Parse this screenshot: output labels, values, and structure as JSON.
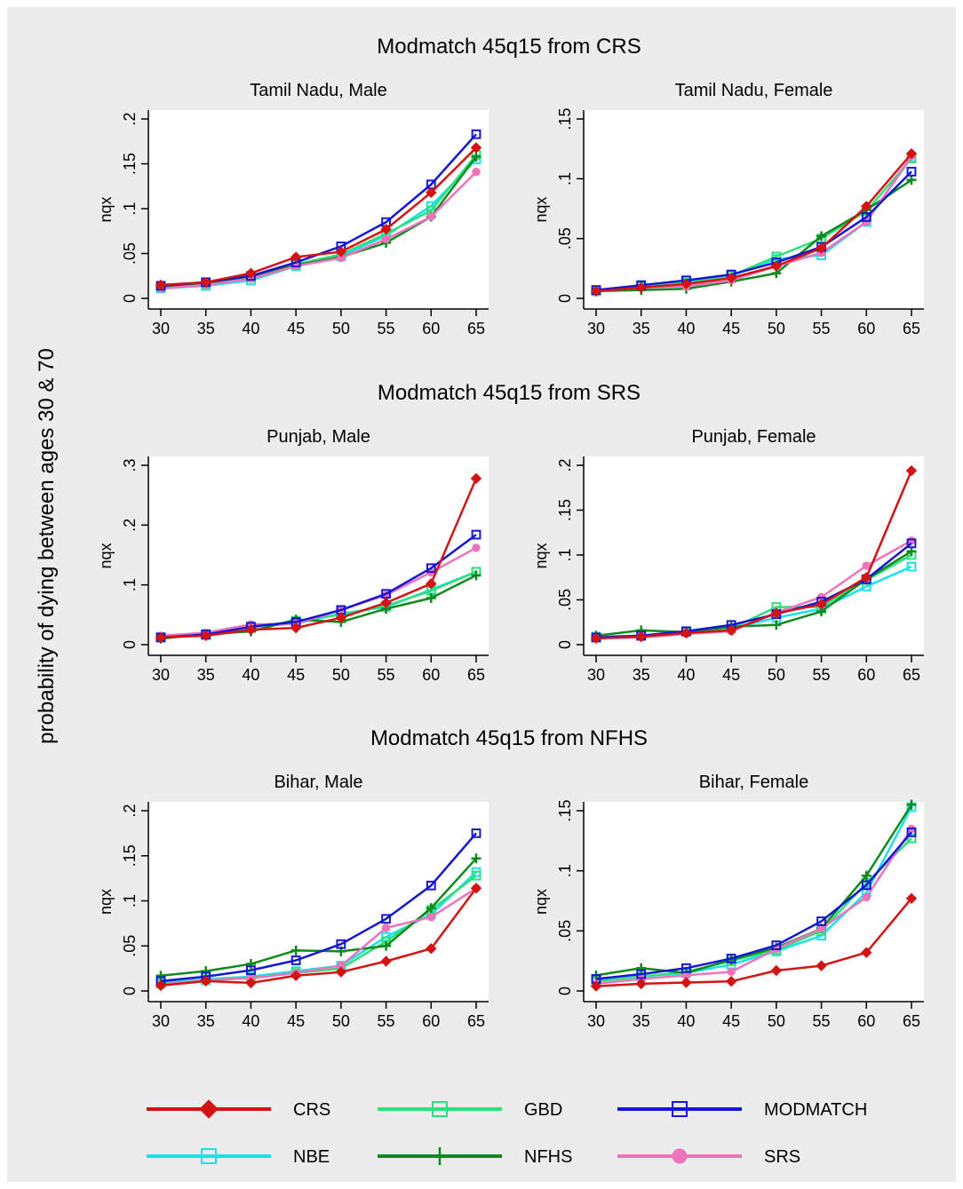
{
  "page": {
    "y_axis_label": "probability of dying between ages 30 & 70",
    "background_color": "#ffffff",
    "panel_background_color": "#ececec"
  },
  "sections": [
    {
      "title": "Modmatch 45q15 from CRS"
    },
    {
      "title": "Modmatch 45q15 from SRS"
    },
    {
      "title": "Modmatch 45q15 from NFHS"
    }
  ],
  "legend": {
    "items": [
      {
        "label": "CRS",
        "color": "#d41313",
        "marker": "diamond"
      },
      {
        "label": "GBD",
        "color": "#2ee07a",
        "marker": "square-open"
      },
      {
        "label": "MODMATCH",
        "color": "#1515d4",
        "marker": "square-open"
      },
      {
        "label": "NBE",
        "color": "#18e0ee",
        "marker": "square-open"
      },
      {
        "label": "NFHS",
        "color": "#0f8a1c",
        "marker": "plus"
      },
      {
        "label": "SRS",
        "color": "#ef72bc",
        "marker": "circle"
      }
    ]
  },
  "chart_data": [
    {
      "type": "line",
      "title": "Tamil Nadu, Male",
      "ylabel": "nqx",
      "x": [
        30,
        35,
        40,
        45,
        50,
        55,
        60,
        65
      ],
      "ylim": [
        0,
        0.2
      ],
      "yticks": [
        0,
        0.05,
        0.1,
        0.15,
        0.2
      ],
      "ytick_labels": [
        "0",
        ".05",
        ".1",
        ".15",
        ".2"
      ],
      "series": [
        {
          "name": "CRS",
          "values": [
            0.015,
            0.018,
            0.028,
            0.046,
            0.052,
            0.077,
            0.118,
            0.168
          ]
        },
        {
          "name": "GBD",
          "values": [
            0.012,
            0.016,
            0.023,
            0.038,
            0.049,
            0.072,
            0.098,
            0.16
          ]
        },
        {
          "name": "MODMATCH",
          "values": [
            0.014,
            0.018,
            0.025,
            0.04,
            0.058,
            0.085,
            0.127,
            0.183
          ]
        },
        {
          "name": "NBE",
          "values": [
            0.011,
            0.014,
            0.02,
            0.036,
            0.047,
            0.07,
            0.103,
            0.155
          ]
        },
        {
          "name": "NFHS",
          "values": [
            0.013,
            0.017,
            0.024,
            0.037,
            0.046,
            0.062,
            0.091,
            0.158
          ]
        },
        {
          "name": "SRS",
          "values": [
            0.011,
            0.015,
            0.022,
            0.036,
            0.045,
            0.066,
            0.091,
            0.141
          ]
        }
      ]
    },
    {
      "type": "line",
      "title": "Tamil Nadu, Female",
      "ylabel": "nqx",
      "x": [
        30,
        35,
        40,
        45,
        50,
        55,
        60,
        65
      ],
      "ylim": [
        0,
        0.15
      ],
      "yticks": [
        0,
        0.05,
        0.1,
        0.15
      ],
      "ytick_labels": [
        "0",
        ".05",
        ".1",
        ".15"
      ],
      "series": [
        {
          "name": "CRS",
          "values": [
            0.006,
            0.009,
            0.012,
            0.017,
            0.027,
            0.042,
            0.077,
            0.121
          ]
        },
        {
          "name": "GBD",
          "values": [
            0.006,
            0.01,
            0.013,
            0.019,
            0.035,
            0.05,
            0.073,
            0.117
          ]
        },
        {
          "name": "MODMATCH",
          "values": [
            0.007,
            0.011,
            0.015,
            0.02,
            0.03,
            0.043,
            0.068,
            0.106
          ]
        },
        {
          "name": "NBE",
          "values": [
            0.006,
            0.011,
            0.015,
            0.019,
            0.033,
            0.036,
            0.064,
            0.118
          ]
        },
        {
          "name": "NFHS",
          "values": [
            0.006,
            0.007,
            0.008,
            0.014,
            0.021,
            0.052,
            0.074,
            0.099
          ]
        },
        {
          "name": "SRS",
          "values": [
            0.006,
            0.009,
            0.01,
            0.015,
            0.027,
            0.038,
            0.064,
            0.119
          ]
        }
      ]
    },
    {
      "type": "line",
      "title": "Punjab, Male",
      "ylabel": "nqx",
      "x": [
        30,
        35,
        40,
        45,
        50,
        55,
        60,
        65
      ],
      "ylim": [
        0,
        0.3
      ],
      "yticks": [
        0,
        0.1,
        0.2,
        0.3
      ],
      "ytick_labels": [
        "0",
        ".1",
        ".2",
        ".3"
      ],
      "series": [
        {
          "name": "CRS",
          "values": [
            0.012,
            0.015,
            0.025,
            0.028,
            0.045,
            0.07,
            0.102,
            0.278
          ]
        },
        {
          "name": "GBD",
          "values": [
            0.012,
            0.016,
            0.028,
            0.04,
            0.05,
            0.065,
            0.09,
            0.122
          ]
        },
        {
          "name": "MODMATCH",
          "values": [
            0.012,
            0.017,
            0.03,
            0.038,
            0.058,
            0.085,
            0.128,
            0.184
          ]
        },
        {
          "name": "NBE",
          "values": [
            0.013,
            0.018,
            0.03,
            0.035,
            0.052,
            0.063,
            0.092,
            0.122
          ]
        },
        {
          "name": "NFHS",
          "values": [
            0.01,
            0.018,
            0.022,
            0.042,
            0.038,
            0.06,
            0.078,
            0.116
          ]
        },
        {
          "name": "SRS",
          "values": [
            0.015,
            0.02,
            0.034,
            0.035,
            0.058,
            0.083,
            0.121,
            0.162
          ]
        }
      ]
    },
    {
      "type": "line",
      "title": "Punjab, Female",
      "ylabel": "nqx",
      "x": [
        30,
        35,
        40,
        45,
        50,
        55,
        60,
        65
      ],
      "ylim": [
        0,
        0.2
      ],
      "yticks": [
        0,
        0.05,
        0.1,
        0.15,
        0.2
      ],
      "ytick_labels": [
        "0",
        ".05",
        ".1",
        ".15",
        ".2"
      ],
      "series": [
        {
          "name": "CRS",
          "values": [
            0.007,
            0.009,
            0.013,
            0.016,
            0.035,
            0.045,
            0.075,
            0.194
          ]
        },
        {
          "name": "GBD",
          "values": [
            0.008,
            0.01,
            0.014,
            0.018,
            0.042,
            0.042,
            0.072,
            0.1
          ]
        },
        {
          "name": "MODMATCH",
          "values": [
            0.008,
            0.01,
            0.015,
            0.022,
            0.034,
            0.048,
            0.073,
            0.113
          ]
        },
        {
          "name": "NBE",
          "values": [
            0.009,
            0.01,
            0.015,
            0.018,
            0.03,
            0.04,
            0.065,
            0.087
          ]
        },
        {
          "name": "NFHS",
          "values": [
            0.01,
            0.016,
            0.014,
            0.02,
            0.022,
            0.037,
            0.073,
            0.104
          ]
        },
        {
          "name": "SRS",
          "values": [
            0.007,
            0.008,
            0.012,
            0.015,
            0.036,
            0.053,
            0.088,
            0.116
          ]
        }
      ]
    },
    {
      "type": "line",
      "title": "Bihar, Male",
      "ylabel": "nqx",
      "x": [
        30,
        35,
        40,
        45,
        50,
        55,
        60,
        65
      ],
      "ylim": [
        0,
        0.2
      ],
      "yticks": [
        0,
        0.05,
        0.1,
        0.15,
        0.2
      ],
      "ytick_labels": [
        "0",
        ".05",
        ".1",
        ".15",
        ".2"
      ],
      "series": [
        {
          "name": "CRS",
          "values": [
            0.006,
            0.011,
            0.009,
            0.017,
            0.021,
            0.033,
            0.047,
            0.114
          ]
        },
        {
          "name": "GBD",
          "values": [
            0.008,
            0.012,
            0.015,
            0.02,
            0.025,
            0.055,
            0.09,
            0.128
          ]
        },
        {
          "name": "MODMATCH",
          "values": [
            0.011,
            0.016,
            0.023,
            0.034,
            0.052,
            0.08,
            0.117,
            0.175
          ]
        },
        {
          "name": "NBE",
          "values": [
            0.009,
            0.013,
            0.016,
            0.022,
            0.028,
            0.06,
            0.085,
            0.132
          ]
        },
        {
          "name": "NFHS",
          "values": [
            0.017,
            0.022,
            0.03,
            0.045,
            0.044,
            0.05,
            0.092,
            0.147
          ]
        },
        {
          "name": "SRS",
          "values": [
            0.007,
            0.012,
            0.014,
            0.02,
            0.028,
            0.07,
            0.082,
            0.114
          ]
        }
      ]
    },
    {
      "type": "line",
      "title": "Bihar, Female",
      "ylabel": "nqx",
      "x": [
        30,
        35,
        40,
        45,
        50,
        55,
        60,
        65
      ],
      "ylim": [
        0,
        0.15
      ],
      "yticks": [
        0,
        0.05,
        0.1,
        0.15
      ],
      "ytick_labels": [
        "0",
        ".05",
        ".1",
        ".15"
      ],
      "series": [
        {
          "name": "CRS",
          "values": [
            0.004,
            0.006,
            0.007,
            0.008,
            0.017,
            0.021,
            0.032,
            0.077
          ]
        },
        {
          "name": "GBD",
          "values": [
            0.008,
            0.012,
            0.016,
            0.025,
            0.034,
            0.05,
            0.09,
            0.127
          ]
        },
        {
          "name": "MODMATCH",
          "values": [
            0.01,
            0.014,
            0.019,
            0.027,
            0.038,
            0.058,
            0.088,
            0.132
          ]
        },
        {
          "name": "NBE",
          "values": [
            0.008,
            0.012,
            0.015,
            0.022,
            0.033,
            0.046,
            0.082,
            0.153
          ]
        },
        {
          "name": "NFHS",
          "values": [
            0.013,
            0.019,
            0.015,
            0.026,
            0.036,
            0.052,
            0.096,
            0.155
          ]
        },
        {
          "name": "SRS",
          "values": [
            0.006,
            0.01,
            0.013,
            0.016,
            0.035,
            0.052,
            0.078,
            0.135
          ]
        }
      ]
    }
  ]
}
